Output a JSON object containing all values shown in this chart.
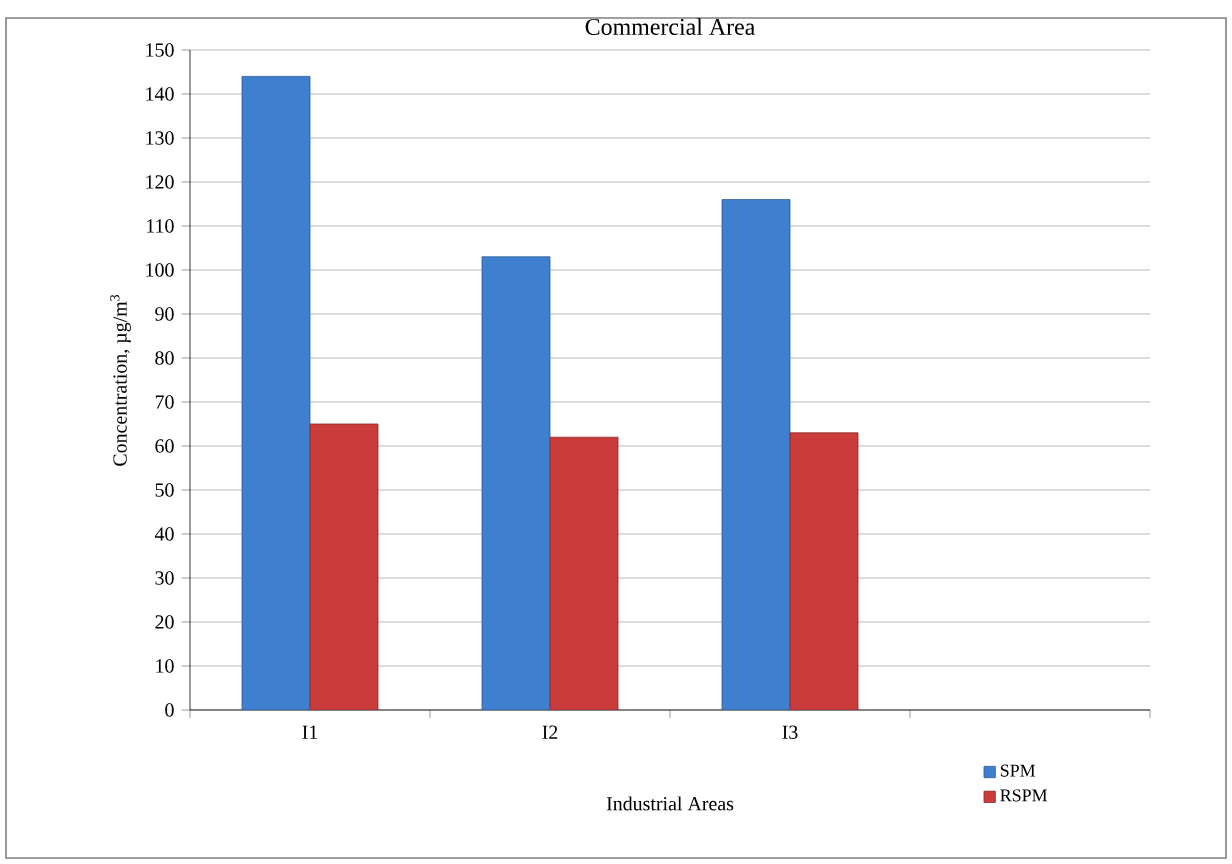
{
  "chart_data": {
    "type": "bar",
    "title": "Commercial Area",
    "xlabel": "Industrial  Areas",
    "ylabel": "Concentration, µg/m$^{3}$",
    "categories": [
      "I1",
      "I2",
      "I3",
      null
    ],
    "series": [
      {
        "name": "SPM",
        "color": "#3f7fd0",
        "values": [
          144,
          103,
          116,
          null
        ]
      },
      {
        "name": "RSPM",
        "color": "#c93c3a",
        "values": [
          65,
          62,
          63,
          null
        ]
      }
    ],
    "ylim": [
      0,
      150
    ],
    "yticks": [
      0,
      10,
      20,
      30,
      40,
      50,
      60,
      70,
      80,
      90,
      100,
      110,
      120,
      130,
      140,
      150
    ],
    "grid": "y",
    "legend": "bottom right"
  }
}
